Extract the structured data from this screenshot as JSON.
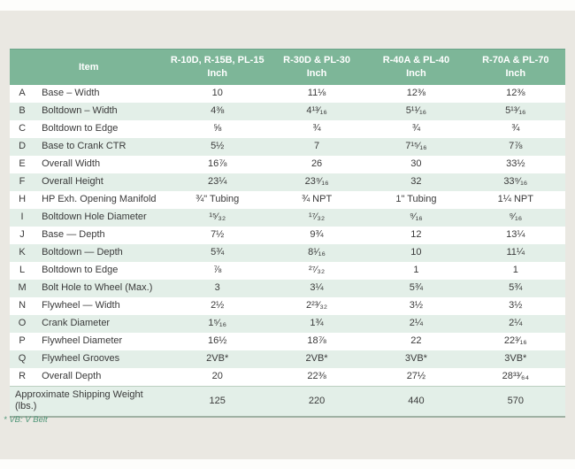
{
  "table": {
    "header": {
      "item_label": "Item",
      "columns": [
        {
          "name": "R-10D, R-15B, PL-15",
          "unit": "Inch"
        },
        {
          "name": "R-30D & PL-30",
          "unit": "Inch"
        },
        {
          "name": "R-40A & PL-40",
          "unit": "Inch"
        },
        {
          "name": "R-70A & PL-70",
          "unit": "Inch"
        }
      ]
    },
    "rows": [
      {
        "letter": "A",
        "item": "Base – Width",
        "values": [
          "10",
          "11⅛",
          "12⅜",
          "12⅜"
        ]
      },
      {
        "letter": "B",
        "item": "Boltdown – Width",
        "values": [
          "4⅜",
          "4¹³⁄₁₆",
          "5¹¹⁄₁₆",
          "5¹³⁄₁₆"
        ]
      },
      {
        "letter": "C",
        "item": "Boltdown to Edge",
        "values": [
          "⅝",
          "¾",
          "¾",
          "¾"
        ]
      },
      {
        "letter": "D",
        "item": "Base to Crank CTR",
        "values": [
          "5½",
          "7",
          "7¹⁵⁄₁₆",
          "7⅞"
        ]
      },
      {
        "letter": "E",
        "item": "Overall Width",
        "values": [
          "16⅞",
          "26",
          "30",
          "33½"
        ]
      },
      {
        "letter": "F",
        "item": "Overall Height",
        "values": [
          "23¼",
          "23⁹⁄₁₆",
          "32",
          "33⁹⁄₁₆"
        ]
      },
      {
        "letter": "H",
        "item": "HP Exh. Opening Manifold",
        "values": [
          "¾\" Tubing",
          "¾ NPT",
          "1\" Tubing",
          "1¼ NPT"
        ]
      },
      {
        "letter": "I",
        "item": "Boltdown Hole Diameter",
        "values": [
          "¹⁵⁄₃₂",
          "¹⁷⁄₃₂",
          "⁹⁄₁₆",
          "⁹⁄₁₆"
        ]
      },
      {
        "letter": "J",
        "item": "Base — Depth",
        "values": [
          "7½",
          "9¾",
          "12",
          "13¼"
        ]
      },
      {
        "letter": "K",
        "item": "Boltdown — Depth",
        "values": [
          "5¾",
          "8¹⁄₁₆",
          "10",
          "11¼"
        ]
      },
      {
        "letter": "L",
        "item": "Boltdown to Edge",
        "values": [
          "⅞",
          "²⁷⁄₃₂",
          "1",
          "1"
        ]
      },
      {
        "letter": "M",
        "item": "Bolt Hole to Wheel (Max.)",
        "values": [
          "3",
          "3¼",
          "5¾",
          "5¾"
        ]
      },
      {
        "letter": "N",
        "item": "Flywheel — Width",
        "values": [
          "2½",
          "2²³⁄₃₂",
          "3½",
          "3½"
        ]
      },
      {
        "letter": "O",
        "item": "Crank Diameter",
        "values": [
          "1⁵⁄₁₆",
          "1¾",
          "2¼",
          "2¼"
        ]
      },
      {
        "letter": "P",
        "item": "Flywheel Diameter",
        "values": [
          "16½",
          "18⅞",
          "22",
          "22³⁄₁₆"
        ]
      },
      {
        "letter": "Q",
        "item": "Flywheel Grooves",
        "values": [
          "2VB*",
          "2VB*",
          "3VB*",
          "3VB*"
        ]
      },
      {
        "letter": "R",
        "item": "Overall Depth",
        "values": [
          "20",
          "22⅜",
          "27½",
          "28³³⁄₆₄"
        ]
      }
    ],
    "footer_row": {
      "label": "Approximate Shipping Weight (lbs.)",
      "values": [
        "125",
        "220",
        "440",
        "570"
      ]
    }
  },
  "footnote": "* VB: V Belt",
  "colors": {
    "header_green": "#7db698",
    "row_stripe_green": "#e3efe8",
    "footnote_green": "#4f9678",
    "page_background": "#eae8e2"
  }
}
